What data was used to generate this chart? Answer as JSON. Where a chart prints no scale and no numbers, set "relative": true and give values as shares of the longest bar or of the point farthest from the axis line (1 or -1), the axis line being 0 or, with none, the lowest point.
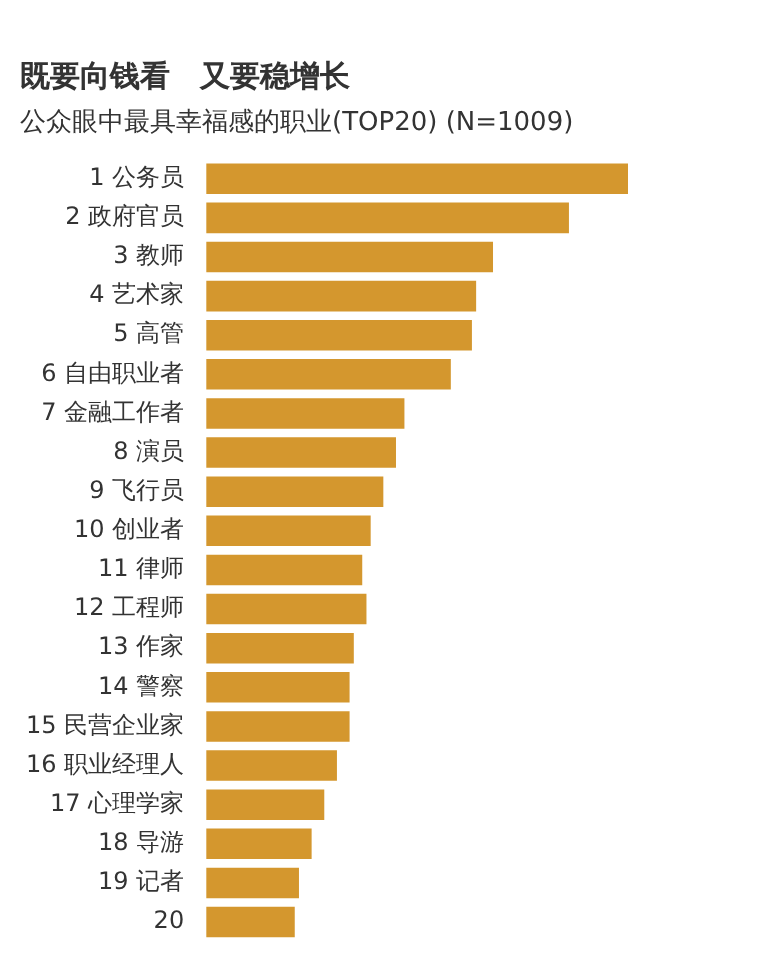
{
  "chart_data": {
    "type": "bar",
    "orientation": "horizontal",
    "relative": true,
    "title": "既要向钱看　又要稳增长",
    "subtitle": "公众眼中最具幸福感的职业(TOP20) (N=1009)",
    "categories": [
      "1 公务员",
      "2 政府官员",
      "3 教师",
      "4 艺术家",
      "5 高管",
      "6 自由职业者",
      "7 金融工作者",
      "8 演员",
      "9 飞行员",
      "10 创业者",
      "11 律师",
      "12 工程师",
      "13 作家",
      "14 警察",
      "15 民营企业家",
      "16 职业经理人",
      "17 心理学家",
      "18 导游",
      "19 记者",
      "20"
    ],
    "values": [
      1,
      0.86,
      0.68,
      0.64,
      0.63,
      0.58,
      0.47,
      0.45,
      0.42,
      0.39,
      0.37,
      0.38,
      0.35,
      0.34,
      0.34,
      0.31,
      0.28,
      0.25,
      0.22,
      0.21
    ],
    "color": "#d4972e",
    "legend": false
  }
}
